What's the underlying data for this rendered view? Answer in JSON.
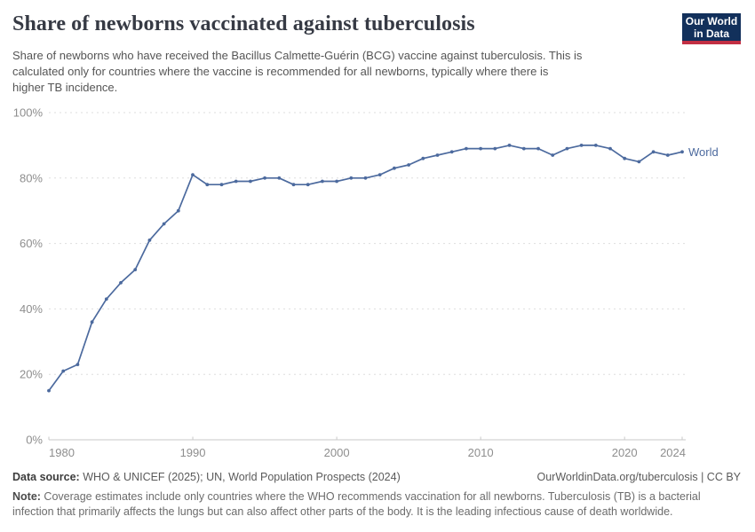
{
  "header": {
    "title": "Share of newborns vaccinated against tuberculosis",
    "subtitle_lines": [
      "Share of newborns who have received the Bacillus Calmette-Guérin (BCG) vaccine against tuberculosis. This is",
      "calculated only for countries where the vaccine is recommended for all newborns, typically where there is",
      "higher TB incidence."
    ],
    "logo": {
      "line1": "Our World",
      "line2": "in Data",
      "bg_color": "#12305b",
      "bar_color": "#c22f43"
    }
  },
  "chart_data": {
    "type": "line",
    "title": "Share of newborns vaccinated against tuberculosis",
    "xlabel": "",
    "ylabel": "",
    "x": [
      1980,
      1981,
      1982,
      1983,
      1984,
      1985,
      1986,
      1987,
      1988,
      1989,
      1990,
      1991,
      1992,
      1993,
      1994,
      1995,
      1996,
      1997,
      1998,
      1999,
      2000,
      2001,
      2002,
      2003,
      2004,
      2005,
      2006,
      2007,
      2008,
      2009,
      2010,
      2011,
      2012,
      2013,
      2014,
      2015,
      2016,
      2017,
      2018,
      2019,
      2020,
      2021,
      2022,
      2023,
      2024
    ],
    "series": [
      {
        "name": "World",
        "color": "#4c6a9e",
        "values": [
          15,
          21,
          23,
          36,
          43,
          48,
          52,
          61,
          66,
          70,
          81,
          78,
          78,
          79,
          79,
          80,
          80,
          78,
          78,
          79,
          79,
          80,
          80,
          81,
          83,
          84,
          86,
          87,
          88,
          89,
          89,
          89,
          90,
          89,
          89,
          87,
          89,
          90,
          90,
          89,
          86,
          85,
          88,
          87,
          88
        ]
      }
    ],
    "x_ticks": [
      1980,
      1990,
      2000,
      2010,
      2020,
      2024
    ],
    "y_ticks": [
      0,
      20,
      40,
      60,
      80,
      100
    ],
    "y_tick_suffix": "%",
    "xlim": [
      1980,
      2024
    ],
    "ylim": [
      0,
      100
    ],
    "grid": "horizontal-dashed",
    "legend_position": "line-end-label",
    "colors": {
      "grid": "#dedede",
      "axis": "#c9c9c9",
      "tick_label": "#8e8e8e"
    }
  },
  "footer": {
    "source_label": "Data source:",
    "source_text": " WHO & UNICEF (2025); UN, World Population Prospects (2024)",
    "link_text": "OurWorldinData.org/tuberculosis | CC BY",
    "note_label": "Note:",
    "note_lines": [
      " Coverage estimates include only countries where the WHO recommends vaccination for all newborns. Tuberculosis (TB) is a bacterial",
      "infection that primarily affects the lungs but can also affect other parts of the body. It is the leading infectious cause of death worldwide."
    ]
  }
}
